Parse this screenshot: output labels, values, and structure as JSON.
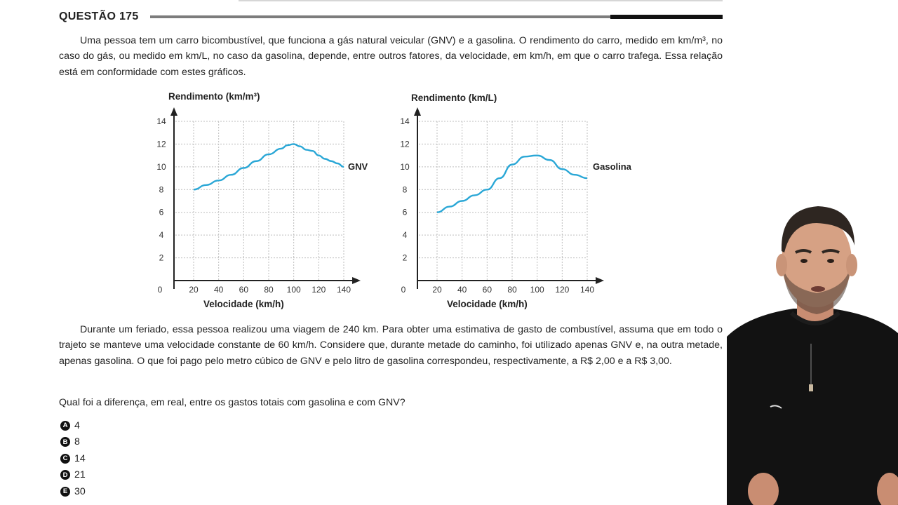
{
  "question": {
    "number_label": "QUESTÃO 175",
    "intro": "Uma pessoa tem um carro bicombustível, que funciona a gás natural veicular (GNV) e a gasolina. O rendimento do carro, medido em km/m³, no caso do gás, ou medido em km/L, no caso da gasolina, depende, entre outros fatores, da velocidade, em km/h, em que o carro trafega. Essa relação está em conformidade com estes gráficos.",
    "trip": "Durante um feriado, essa pessoa realizou uma viagem de 240 km. Para obter uma estimativa de gasto de combustível, assuma que em todo o trajeto se manteve uma velocidade constante de 60 km/h. Considere que, durante metade do caminho, foi utilizado apenas GNV e, na outra metade, apenas gasolina. O que foi pago pelo metro cúbico de GNV e pelo litro de gasolina correspondeu, respectivamente, a R$ 2,00 e a R$ 3,00.",
    "prompt": "Qual foi a diferença, em real, entre os gastos totais com gasolina e com GNV?",
    "options": [
      {
        "letter": "A",
        "value": "4"
      },
      {
        "letter": "B",
        "value": "8"
      },
      {
        "letter": "C",
        "value": "14"
      },
      {
        "letter": "D",
        "value": "21"
      },
      {
        "letter": "E",
        "value": "30"
      }
    ]
  },
  "chart_data": [
    {
      "type": "line",
      "ylabel": "Rendimento (km/m³)",
      "xlabel": "Velocidade (km/h)",
      "series_label": "GNV",
      "xlim": [
        0,
        140
      ],
      "ylim": [
        0,
        14
      ],
      "x_ticks": [
        "0",
        "20",
        "40",
        "60",
        "80",
        "100",
        "120",
        "140"
      ],
      "y_ticks": [
        "2",
        "4",
        "6",
        "8",
        "10",
        "12",
        "14"
      ],
      "grid": true,
      "color": "#2aa7d6",
      "x": [
        20,
        30,
        40,
        50,
        60,
        70,
        80,
        90,
        95,
        100,
        105,
        110,
        115,
        120,
        125,
        130,
        135,
        140
      ],
      "y": [
        8,
        8.4,
        8.8,
        9.3,
        9.9,
        10.5,
        11.1,
        11.6,
        11.9,
        12,
        11.8,
        11.5,
        11.4,
        11,
        10.7,
        10.5,
        10.3,
        10
      ]
    },
    {
      "type": "line",
      "ylabel": "Rendimento (km/L)",
      "xlabel": "Velocidade (km/h)",
      "series_label": "Gasolina",
      "xlim": [
        0,
        140
      ],
      "ylim": [
        0,
        14
      ],
      "x_ticks": [
        "0",
        "20",
        "40",
        "60",
        "80",
        "100",
        "120",
        "140"
      ],
      "y_ticks": [
        "2",
        "4",
        "6",
        "8",
        "10",
        "12",
        "14"
      ],
      "grid": true,
      "color": "#2aa7d6",
      "x": [
        20,
        30,
        40,
        50,
        60,
        70,
        80,
        90,
        100,
        110,
        120,
        130,
        140
      ],
      "y": [
        6,
        6.5,
        7,
        7.5,
        8,
        9,
        10.2,
        10.9,
        11,
        10.6,
        9.8,
        9.3,
        9
      ]
    }
  ]
}
